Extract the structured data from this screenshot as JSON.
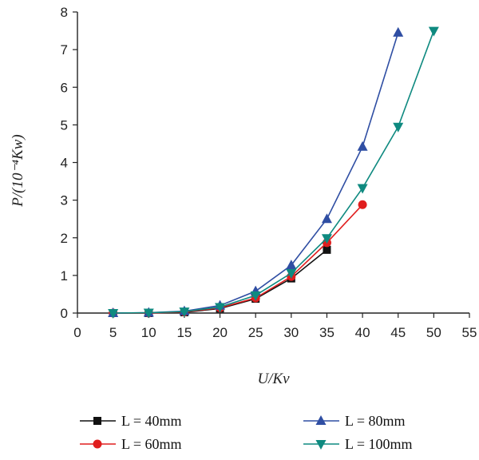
{
  "chart_data": {
    "type": "line",
    "xlabel": "U/Kv",
    "ylabel": "P/(10⁻⁴Kw)",
    "xlim": [
      0,
      55
    ],
    "ylim": [
      0,
      8
    ],
    "xticks": [
      "0",
      "5",
      "10",
      "15",
      "20",
      "25",
      "30",
      "35",
      "40",
      "45",
      "50",
      "55"
    ],
    "yticks": [
      "0",
      "1",
      "2",
      "3",
      "4",
      "5",
      "6",
      "7",
      "8"
    ],
    "grid": false,
    "legend_position": "bottom",
    "series": [
      {
        "name": "L = 40mm",
        "color": "#111111",
        "marker": "square",
        "x": [
          5,
          10,
          15,
          20,
          25,
          30,
          35
        ],
        "y": [
          0.0,
          0.0,
          0.02,
          0.12,
          0.38,
          0.92,
          1.68
        ]
      },
      {
        "name": "L = 60mm",
        "color": "#e01e1e",
        "marker": "circle",
        "x": [
          5,
          10,
          15,
          20,
          25,
          30,
          35,
          40
        ],
        "y": [
          0.0,
          0.0,
          0.03,
          0.14,
          0.4,
          0.97,
          1.87,
          2.88
        ]
      },
      {
        "name": "L = 80mm",
        "color": "#2f4ea3",
        "marker": "triangle-up",
        "x": [
          5,
          10,
          15,
          20,
          25,
          30,
          35,
          40,
          45
        ],
        "y": [
          0.0,
          0.01,
          0.05,
          0.2,
          0.58,
          1.27,
          2.5,
          4.42,
          7.45
        ]
      },
      {
        "name": "L = 100mm",
        "color": "#0f8a80",
        "marker": "triangle-down",
        "x": [
          5,
          10,
          15,
          20,
          25,
          30,
          35,
          40,
          45,
          50
        ],
        "y": [
          0.0,
          0.01,
          0.04,
          0.16,
          0.47,
          1.06,
          1.99,
          3.32,
          4.95,
          7.5
        ]
      }
    ]
  }
}
